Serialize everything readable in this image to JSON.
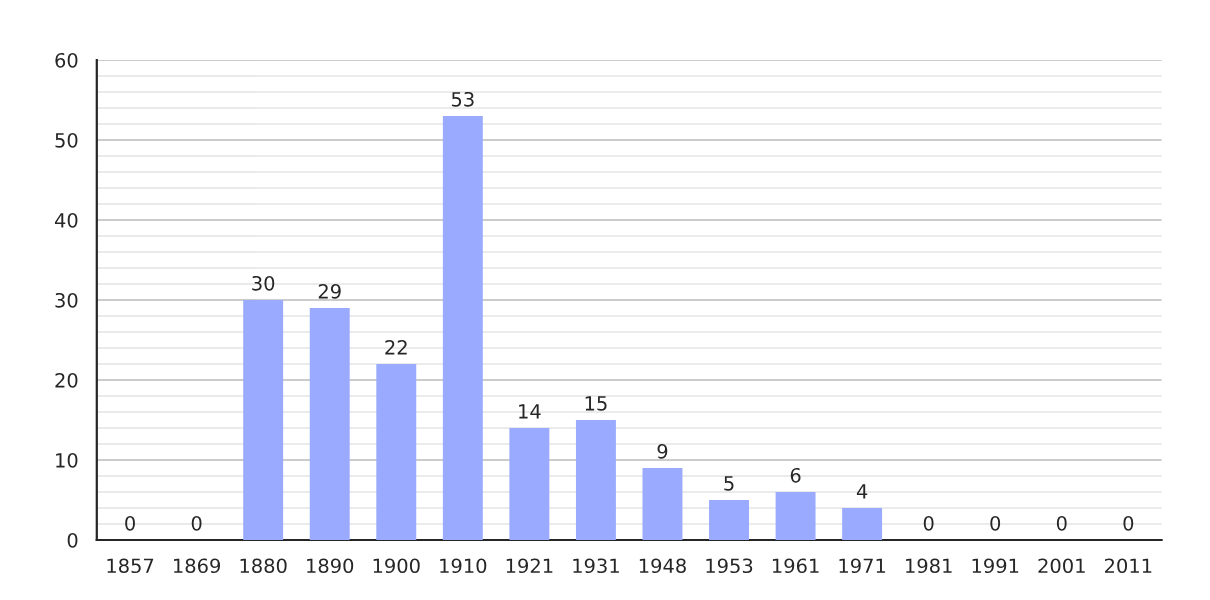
{
  "chart_data": {
    "type": "bar",
    "categories": [
      "1857",
      "1869",
      "1880",
      "1890",
      "1900",
      "1910",
      "1921",
      "1931",
      "1948",
      "1953",
      "1961",
      "1971",
      "1981",
      "1991",
      "2001",
      "2011"
    ],
    "values": [
      0,
      0,
      30,
      29,
      22,
      53,
      14,
      15,
      9,
      5,
      6,
      4,
      0,
      0,
      0,
      0
    ],
    "color": "#99aaff",
    "data_labels": true,
    "grid": "y",
    "ylim": [
      0,
      60
    ],
    "yticks": [
      0,
      {
        "value": 2,
        "label": null
      },
      {
        "value": 4,
        "label": null
      },
      {
        "value": 6,
        "label": null
      },
      {
        "value": 8,
        "label": null
      },
      10,
      {
        "value": 12,
        "label": null
      },
      {
        "value": 14,
        "label": null
      },
      {
        "value": 16,
        "label": null
      },
      {
        "value": 18,
        "label": null
      },
      20,
      {
        "value": 22,
        "label": null
      },
      {
        "value": 24,
        "label": null
      },
      {
        "value": 26,
        "label": null
      },
      {
        "value": 28,
        "label": null
      },
      30,
      {
        "value": 32,
        "label": null
      },
      {
        "value": 34,
        "label": null
      },
      {
        "value": 36,
        "label": null
      },
      {
        "value": 38,
        "label": null
      },
      40,
      {
        "value": 42,
        "label": null
      },
      {
        "value": 44,
        "label": null
      },
      {
        "value": 46,
        "label": null
      },
      {
        "value": 48,
        "label": null
      },
      50,
      {
        "value": 52,
        "label": null
      },
      {
        "value": 54,
        "label": null
      },
      {
        "value": 56,
        "label": null
      },
      {
        "value": 58,
        "label": null
      },
      60
    ]
  }
}
